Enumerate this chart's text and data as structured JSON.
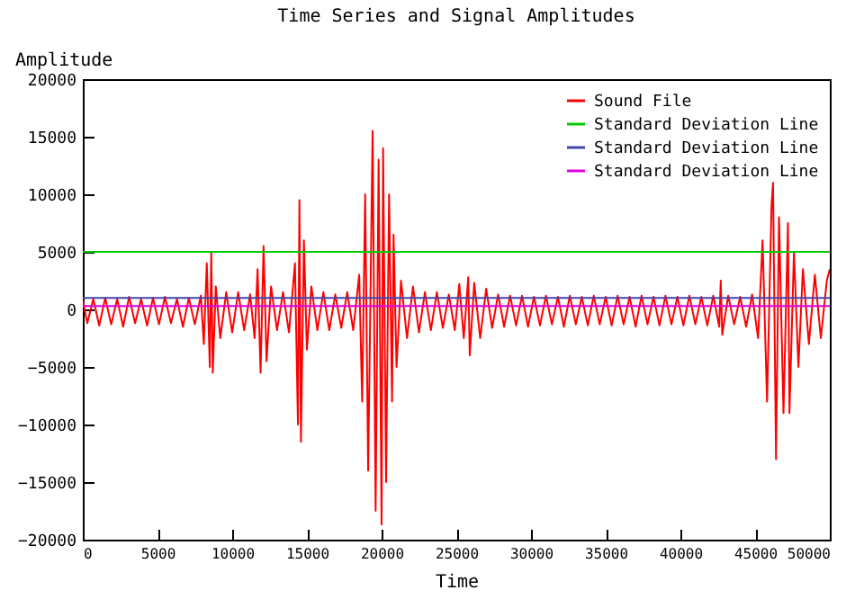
{
  "chart_data": {
    "type": "line",
    "title": "Time Series and Signal Amplitudes",
    "xlabel": "Time",
    "ylabel": "Amplitude",
    "xlim": [
      0,
      50000
    ],
    "xticks": [
      0,
      5000,
      10000,
      15000,
      20000,
      25000,
      30000,
      35000,
      40000,
      45000,
      50000
    ],
    "ylim": [
      -20000,
      20000
    ],
    "yticks": [
      -20000,
      -15000,
      -10000,
      -5000,
      0,
      5000,
      10000,
      15000,
      20000
    ],
    "legend": "top right",
    "series": [
      {
        "name": "Sound File",
        "color": "#ff0000",
        "x": [
          0,
          300,
          700,
          1100,
          1500,
          1900,
          2300,
          2700,
          3100,
          3500,
          3900,
          4300,
          4700,
          5100,
          5500,
          5900,
          6300,
          6700,
          7100,
          7500,
          7900,
          8100,
          8300,
          8500,
          8600,
          8700,
          8900,
          9200,
          9600,
          10000,
          10400,
          10800,
          11200,
          11500,
          11700,
          11900,
          12100,
          12300,
          12600,
          13000,
          13400,
          13800,
          14200,
          14400,
          14500,
          14600,
          14800,
          15000,
          15300,
          15700,
          16100,
          16500,
          16900,
          17300,
          17700,
          18100,
          18500,
          18700,
          18900,
          19100,
          19400,
          19600,
          19800,
          20000,
          20100,
          20300,
          20500,
          20700,
          20800,
          21000,
          21300,
          21700,
          22100,
          22500,
          22900,
          23300,
          23700,
          24100,
          24500,
          24900,
          25200,
          25500,
          25800,
          25900,
          26200,
          26600,
          27000,
          27400,
          27800,
          28200,
          28600,
          29000,
          29400,
          29800,
          30200,
          30600,
          31000,
          31400,
          31800,
          32200,
          32600,
          33000,
          33400,
          33800,
          34200,
          34600,
          35000,
          35400,
          35800,
          36200,
          36600,
          37000,
          37400,
          37800,
          38200,
          38600,
          39000,
          39400,
          39800,
          40200,
          40600,
          41000,
          41400,
          41800,
          42200,
          42600,
          42700,
          42800,
          43200,
          43600,
          44000,
          44400,
          44800,
          45200,
          45500,
          45800,
          46100,
          46200,
          46400,
          46600,
          46900,
          47200,
          47300,
          47600,
          47900,
          48200,
          48600,
          49000,
          49400,
          49800,
          50000
        ],
        "values": [
          800,
          -1200,
          900,
          -1400,
          1000,
          -1300,
          900,
          -1500,
          1100,
          -1200,
          900,
          -1400,
          1000,
          -1300,
          1100,
          -1200,
          900,
          -1500,
          1000,
          -1300,
          1200,
          -3000,
          4000,
          -5000,
          5000,
          -5500,
          2000,
          -2500,
          1500,
          -2000,
          1500,
          -1800,
          1300,
          -2500,
          3500,
          -5500,
          5500,
          -4500,
          2000,
          -1800,
          1500,
          -2000,
          4000,
          -10000,
          9500,
          -11500,
          6000,
          -3500,
          2000,
          -1800,
          1500,
          -1800,
          1300,
          -1600,
          1500,
          -1800,
          3000,
          -8000,
          10000,
          -14000,
          15500,
          -17500,
          13000,
          -18700,
          14000,
          -15000,
          10000,
          -8000,
          6500,
          -5000,
          2500,
          -2500,
          2000,
          -2000,
          1500,
          -1800,
          1500,
          -1600,
          1300,
          -1800,
          2200,
          -2500,
          2800,
          -4000,
          2300,
          -2500,
          1800,
          -1600,
          1300,
          -1500,
          1200,
          -1400,
          1200,
          -1500,
          1100,
          -1400,
          1200,
          -1300,
          1100,
          -1500,
          1200,
          -1300,
          1100,
          -1400,
          1200,
          -1300,
          1100,
          -1400,
          1200,
          -1300,
          1100,
          -1500,
          1200,
          -1300,
          1100,
          -1400,
          1200,
          -1300,
          1100,
          -1400,
          1200,
          -1300,
          1100,
          -1400,
          1200,
          -1500,
          2500,
          -2200,
          1200,
          -1300,
          1100,
          -1500,
          1300,
          -2500,
          6000,
          -8000,
          9000,
          11000,
          -13000,
          8000,
          -9000,
          7500,
          -9000,
          5000,
          -5000,
          3500,
          -3000,
          3000,
          -2500,
          2500,
          3500
        ]
      },
      {
        "name": "Standard Deviation Line",
        "color": "#00cc00",
        "x": [
          0,
          50000
        ],
        "values": [
          5000,
          5000
        ]
      },
      {
        "name": "Standard Deviation Line",
        "color": "#4444aa",
        "x": [
          0,
          50000
        ],
        "values": [
          1000,
          1000
        ]
      },
      {
        "name": "Standard Deviation Line",
        "color": "#dd00dd",
        "x": [
          0,
          50000
        ],
        "values": [
          300,
          300
        ]
      }
    ]
  }
}
